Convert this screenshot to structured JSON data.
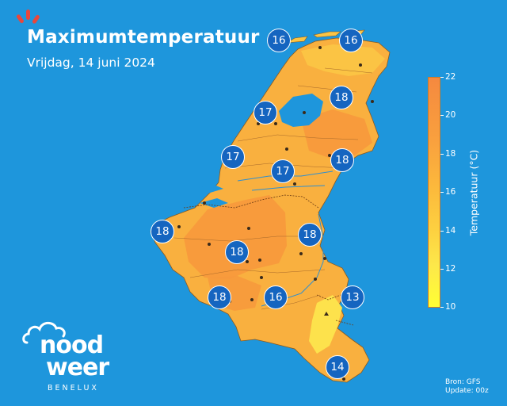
{
  "header": {
    "title": "Maximumtemperatuur",
    "subtitle": "Vrijdag, 14 juni 2024"
  },
  "map": {
    "region": "Benelux",
    "labels": [
      {
        "id": "den-helder",
        "value": "16"
      },
      {
        "id": "groningen",
        "value": "16"
      },
      {
        "id": "enschede",
        "value": "18"
      },
      {
        "id": "amsterdam",
        "value": "17"
      },
      {
        "id": "rotterdam",
        "value": "17"
      },
      {
        "id": "utrecht",
        "value": "17"
      },
      {
        "id": "arnhem",
        "value": "18"
      },
      {
        "id": "oostende",
        "value": "18"
      },
      {
        "id": "maastricht",
        "value": "18"
      },
      {
        "id": "brussel",
        "value": "18"
      },
      {
        "id": "charleroi",
        "value": "18"
      },
      {
        "id": "namur",
        "value": "16"
      },
      {
        "id": "liege-east",
        "value": "13"
      },
      {
        "id": "luxembourg",
        "value": "14"
      }
    ]
  },
  "legend": {
    "title": "Temperatuur (°C)",
    "ticks": [
      "22",
      "20",
      "18",
      "16",
      "14",
      "12",
      "10"
    ],
    "min": 10,
    "max": 22,
    "colors": [
      "#ffff33",
      "#fde84a",
      "#fdd040",
      "#fcb93c",
      "#f9a13e",
      "#f5893f"
    ]
  },
  "footer": {
    "source": "Bron: GFS",
    "update": "Update: 00z"
  },
  "logo": {
    "line1": "nood",
    "line2": "weer",
    "sub": "BENELUX"
  },
  "colors": {
    "sea": "#1e96dc",
    "land_warm": "#f7a23c",
    "land_mid": "#f9b845",
    "land_cool": "#fde24c",
    "badge": "#1565c0",
    "accent_rays": "#e8473c"
  }
}
